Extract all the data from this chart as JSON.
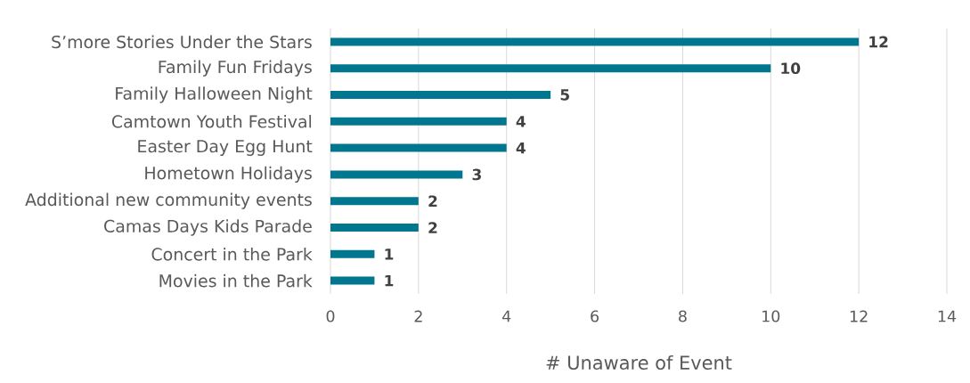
{
  "chart_data": {
    "type": "bar",
    "orientation": "horizontal",
    "xlabel": "# Unaware of Event",
    "categories": [
      "S’more Stories Under the Stars",
      "Family Fun Fridays",
      "Family Halloween Night",
      "Camtown Youth Festival",
      "Easter Day Egg Hunt",
      "Hometown Holidays",
      "Additional new community events",
      "Camas Days Kids Parade",
      "Concert in the Park",
      "Movies in the Park"
    ],
    "values": [
      12,
      10,
      5,
      4,
      4,
      3,
      2,
      2,
      1,
      1
    ],
    "color": "#00778f",
    "xlim": [
      0,
      14
    ],
    "xticks": [
      0,
      2,
      4,
      6,
      8,
      10,
      12,
      14
    ],
    "grid": "x",
    "data_labels": true
  }
}
